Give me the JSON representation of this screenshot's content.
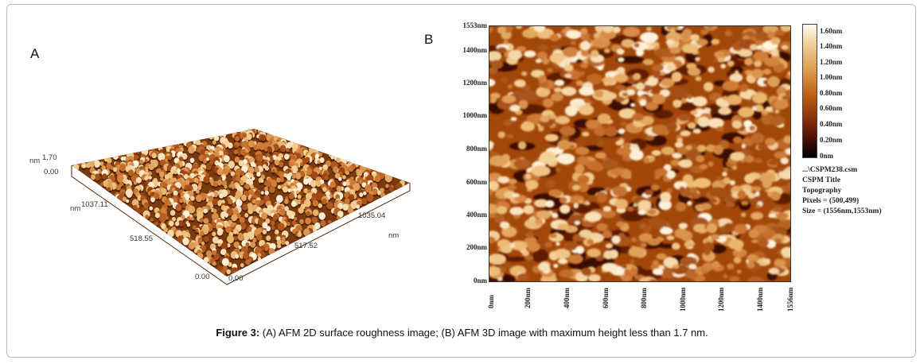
{
  "panels": {
    "a": {
      "label": "A",
      "z_unit": "nm",
      "z_max": "1.70",
      "z_min": "0.00",
      "y_unit": "nm",
      "y_max": "1037.11",
      "y_mid": "518.55",
      "y_min": "0.00",
      "x_min": "0.00",
      "x_mid": "517.52",
      "x_max": "1035.04",
      "x_unit": "nm"
    },
    "b": {
      "label": "B",
      "y_ticks": [
        "1553nm",
        "1400nm",
        "1200nm",
        "1000nm",
        "800nm",
        "600nm",
        "400nm",
        "200nm",
        "0nm"
      ],
      "x_ticks": [
        "0nm",
        "200nm",
        "400nm",
        "600nm",
        "800nm",
        "1000nm",
        "1200nm",
        "1400nm",
        "1556nm"
      ],
      "colorbar_ticks": [
        "1.60nm",
        "1.40nm",
        "1.20nm",
        "1.00nm",
        "0.80nm",
        "0.60nm",
        "0.40nm",
        "0.20nm",
        "0nm"
      ],
      "info": {
        "file": "...\\CSPM238.csm",
        "title": "CSPM Title",
        "mode": "Topography",
        "pixels": "Pixels = (500,499)",
        "size": "Size = (1556nm,1553nm)"
      }
    }
  },
  "caption": {
    "prefix": "Figure 3:",
    "text": " (A) AFM 2D surface roughness image; (B) AFM 3D image with maximum height less than 1.7 nm."
  },
  "colors": {
    "dark": "#1a0500",
    "mid": "#b4520c",
    "light": "#f4dcb4",
    "border": "#b9b9b9"
  }
}
